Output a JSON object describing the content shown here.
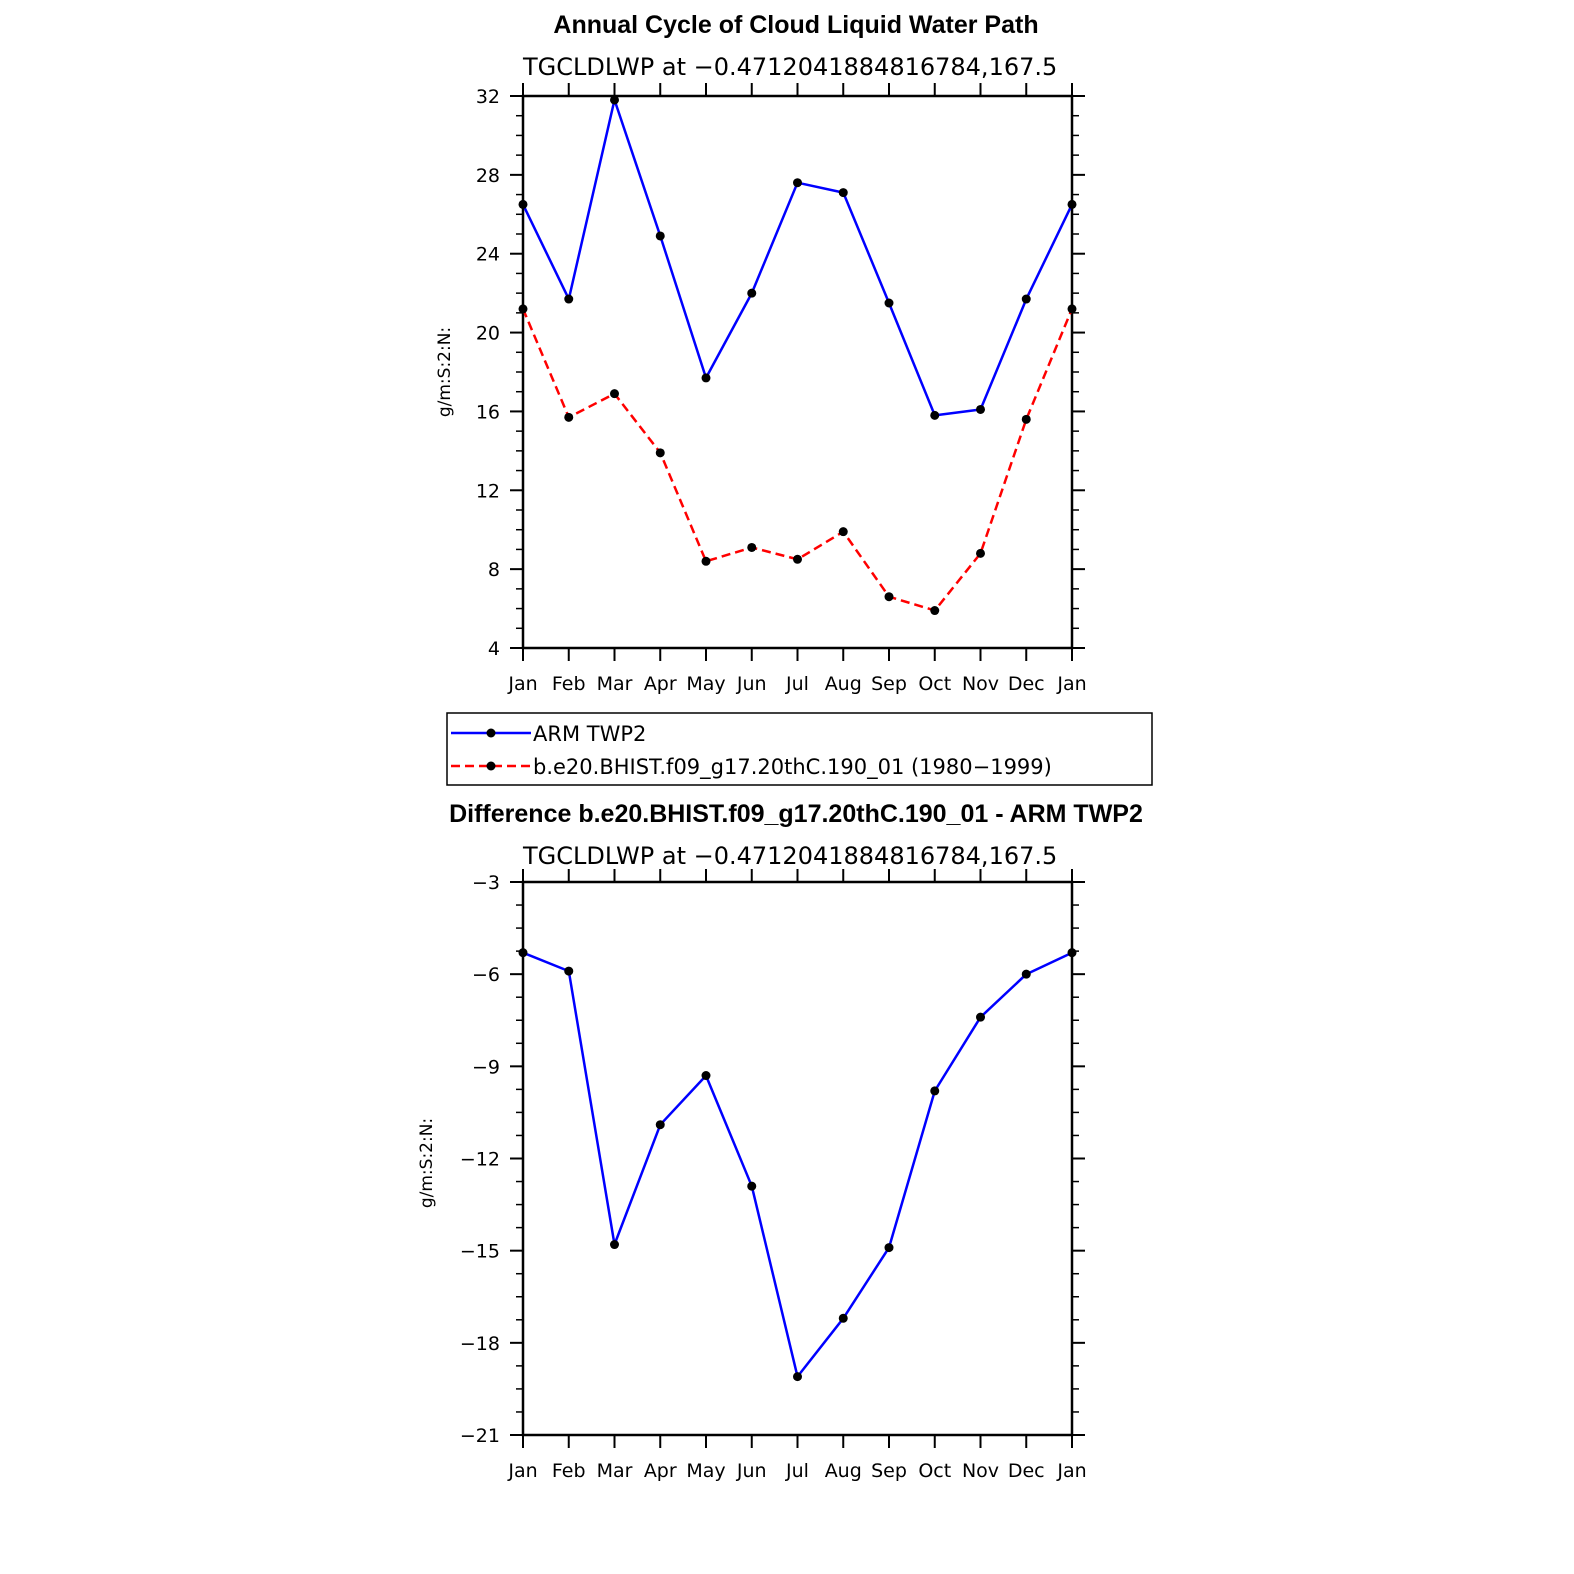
{
  "chart_data": [
    {
      "type": "line",
      "title": "Annual Cycle of Cloud Liquid Water Path",
      "subtitle": "TGCLDLWP  at  −0.4712041884816784,167.5",
      "ylabel": "g/m:S:2:N:",
      "ylim": [
        4,
        32
      ],
      "yticks": [
        4,
        8,
        12,
        16,
        20,
        24,
        28,
        32
      ],
      "ytick_labels": [
        "4",
        "8",
        "12",
        "16",
        "20",
        "24",
        "28",
        "32"
      ],
      "categories": [
        "Jan",
        "Feb",
        "Mar",
        "Apr",
        "May",
        "Jun",
        "Jul",
        "Aug",
        "Sep",
        "Oct",
        "Nov",
        "Dec",
        "Jan"
      ],
      "series": [
        {
          "name": "ARM  TWP2",
          "color": "#0000ff",
          "dashed": false,
          "values": [
            26.5,
            21.7,
            31.8,
            24.9,
            17.7,
            22.0,
            27.6,
            27.1,
            21.5,
            15.8,
            16.1,
            21.7,
            26.5
          ]
        },
        {
          "name": "b.e20.BHIST.f09_g17.20thC.190_01  (1980−1999)",
          "color": "#ff0000",
          "dashed": true,
          "values": [
            21.2,
            15.7,
            16.9,
            13.9,
            8.4,
            9.1,
            8.5,
            9.9,
            6.6,
            5.9,
            8.8,
            15.6,
            21.2
          ]
        }
      ],
      "legend": "below"
    },
    {
      "type": "line",
      "title": "Difference b.e20.BHIST.f09_g17.20thC.190_01 - ARM TWP2",
      "subtitle": "TGCLDLWP  at  −0.4712041884816784,167.5",
      "ylabel": "g/m:S:2:N:",
      "ylim": [
        -21,
        -3
      ],
      "yticks": [
        -21,
        -18,
        -15,
        -12,
        -9,
        -6,
        -3
      ],
      "ytick_labels": [
        "−21",
        "−18",
        "−15",
        "−12",
        "−9",
        "−6",
        "−3"
      ],
      "categories": [
        "Jan",
        "Feb",
        "Mar",
        "Apr",
        "May",
        "Jun",
        "Jul",
        "Aug",
        "Sep",
        "Oct",
        "Nov",
        "Dec",
        "Jan"
      ],
      "series": [
        {
          "color": "#0000ff",
          "dashed": false,
          "values": [
            -5.3,
            -5.9,
            -14.8,
            -10.9,
            -9.3,
            -12.9,
            -19.1,
            -17.2,
            -14.9,
            -9.8,
            -7.4,
            -6.0,
            -5.3
          ]
        }
      ]
    }
  ]
}
